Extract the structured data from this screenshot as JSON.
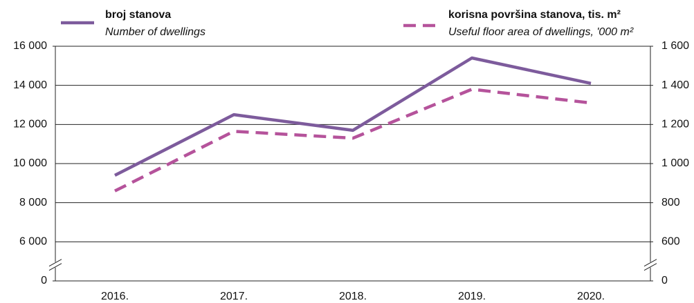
{
  "chart_data": {
    "type": "line",
    "categories": [
      "2016.",
      "2017.",
      "2018.",
      "2019.",
      "2020."
    ],
    "series": [
      {
        "name": "broj stanova",
        "name_en": "Number of dwellings",
        "color": "#7d5b9c",
        "dash": false,
        "axis": "y",
        "values": [
          9400,
          12500,
          11700,
          15400,
          14100
        ]
      },
      {
        "name": "korisna površina stanova, tis. m²",
        "name_en": "Useful floor area of dwellings, '000 m²",
        "color": "#b5539b",
        "dash": true,
        "axis": "y2",
        "values": [
          860,
          1165,
          1130,
          1380,
          1310
        ]
      }
    ],
    "ylim": [
      0,
      16000
    ],
    "ybreak": [
      0,
      6000
    ],
    "yticks": [
      {
        "value": 0,
        "label": "0"
      },
      {
        "value": 6000,
        "label": "6 000"
      },
      {
        "value": 8000,
        "label": "8 000"
      },
      {
        "value": 10000,
        "label": "10 000"
      },
      {
        "value": 12000,
        "label": "12 000"
      },
      {
        "value": 14000,
        "label": "14 000"
      },
      {
        "value": 16000,
        "label": "16 000"
      }
    ],
    "y2lim": [
      0,
      1600
    ],
    "y2break": [
      0,
      600
    ],
    "y2ticks": [
      0,
      600,
      800,
      {
        "value": 1000,
        "label": "1 000"
      },
      {
        "value": 1200,
        "label": "1 200"
      },
      {
        "value": 1400,
        "label": "1 400"
      },
      {
        "value": 1600,
        "label": "1 600"
      }
    ],
    "grid": true
  }
}
